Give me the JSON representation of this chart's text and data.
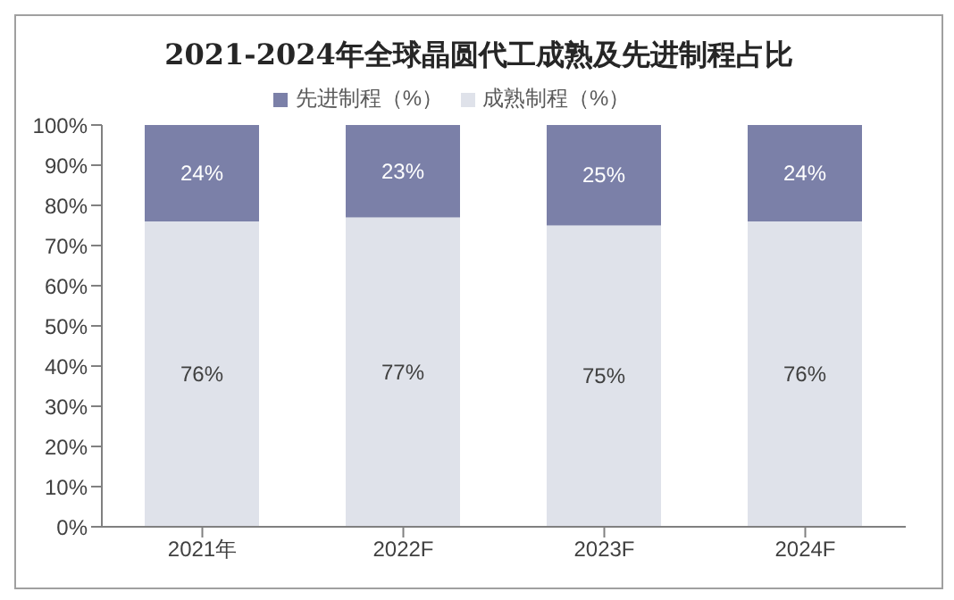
{
  "chart_data": {
    "type": "bar",
    "title": "2021-2024年全球晶圆代工成熟及先进制程占比",
    "categories": [
      "2021年",
      "2022F",
      "2023F",
      "2024F"
    ],
    "stacked": true,
    "legend": "top",
    "grid": false,
    "series": [
      {
        "name": "成熟制程（%）",
        "color": "#dfe2ea",
        "values": [
          76,
          77,
          75,
          76
        ],
        "value_labels": [
          "76%",
          "77%",
          "75%",
          "76%"
        ]
      },
      {
        "name": "先进制程（%）",
        "color": "#7b80a8",
        "values": [
          24,
          23,
          25,
          24
        ],
        "value_labels": [
          "24%",
          "23%",
          "25%",
          "24%"
        ]
      }
    ],
    "ylim": [
      0,
      100
    ],
    "yticks": [
      {
        "value": 0,
        "label": "0%"
      },
      {
        "value": 10,
        "label": "10%"
      },
      {
        "value": 20,
        "label": "20%"
      },
      {
        "value": 30,
        "label": "30%"
      },
      {
        "value": 40,
        "label": "40%"
      },
      {
        "value": 50,
        "label": "50%"
      },
      {
        "value": 60,
        "label": "60%"
      },
      {
        "value": 70,
        "label": "70%"
      },
      {
        "value": 80,
        "label": "80%"
      },
      {
        "value": 90,
        "label": "90%"
      },
      {
        "value": 100,
        "label": "100%"
      }
    ]
  }
}
